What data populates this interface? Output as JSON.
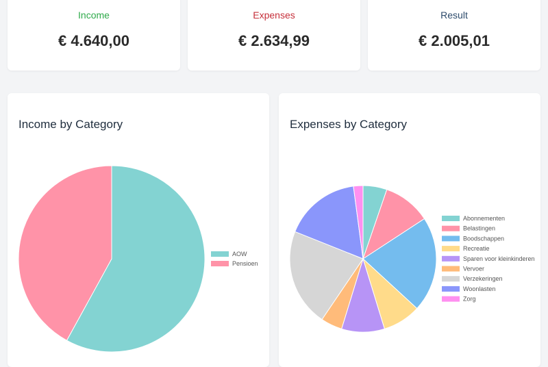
{
  "summary": {
    "income": {
      "label": "Income",
      "value": "€ 4.640,00",
      "color": "#2eaa4a"
    },
    "expenses": {
      "label": "Expenses",
      "value": "€ 2.634,99",
      "color": "#c62f3a"
    },
    "result": {
      "label": "Result",
      "value": "€ 2.005,01",
      "color": "#2c4a6b"
    }
  },
  "chart_data": [
    {
      "type": "pie",
      "title": "Income by Category",
      "categories": [
        "AOW",
        "Pensioen"
      ],
      "values": [
        58,
        42
      ],
      "colors": [
        "#83d3d2",
        "#ff93a8"
      ],
      "legend": "right"
    },
    {
      "type": "pie",
      "title": "Expenses by Category",
      "categories": [
        "Abonnementen",
        "Belastingen",
        "Boodschappen",
        "Recreatie",
        "Sparen voor kleinkinderen",
        "Vervoer",
        "Verzekeringen",
        "Woonlasten",
        "Zorg"
      ],
      "values": [
        5,
        10,
        20,
        8,
        9,
        4.5,
        20.5,
        16,
        2
      ],
      "colors": [
        "#83d3d2",
        "#ff93a8",
        "#74bcee",
        "#ffdb8a",
        "#b794f6",
        "#ffbb7a",
        "#d6d6d6",
        "#8a96fb",
        "#ff90f0"
      ],
      "legend": "right"
    }
  ]
}
